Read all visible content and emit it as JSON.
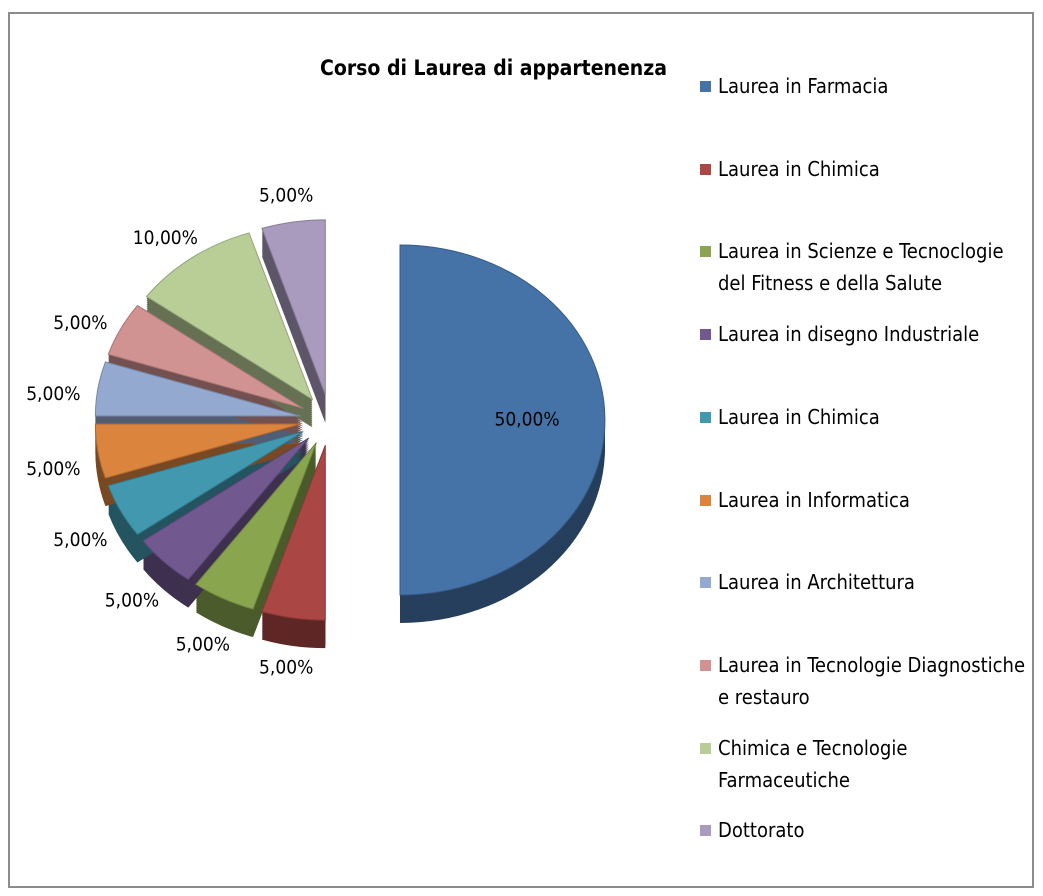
{
  "chart_data": {
    "type": "pie",
    "title": "Corso di Laurea di appartenenza",
    "categories": [
      "Laurea in Farmacia",
      "Laurea in Chimica",
      "Laurea in Scienze e Tecnoclogie del Fitness e della Salute",
      "Laurea in disegno Industriale",
      "Laurea in Chimica",
      "Laurea in Informatica",
      "Laurea in Architettura",
      "Laurea in Tecnologie Diagnostiche e restauro",
      "Chimica e Tecnologie Farmaceutiche",
      "Dottorato"
    ],
    "values": [
      50,
      5,
      5,
      5,
      5,
      5,
      5,
      5,
      10,
      5
    ],
    "value_labels": [
      "50,00%",
      "5,00%",
      "5,00%",
      "5,00%",
      "5,00%",
      "5,00%",
      "5,00%",
      "5,00%",
      "10,00%",
      "5,00%"
    ],
    "colors": [
      "#4572a7",
      "#aa4643",
      "#89a54e",
      "#71588f",
      "#4198af",
      "#db843d",
      "#93a9cf",
      "#d19392",
      "#b9cd96",
      "#a99bbd"
    ],
    "legend": "right"
  }
}
